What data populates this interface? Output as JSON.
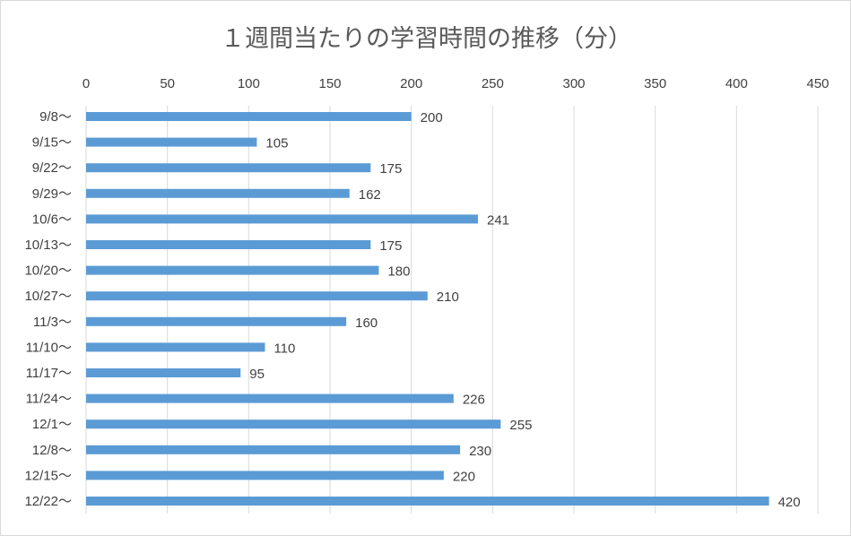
{
  "chart_data": {
    "type": "bar",
    "orientation": "horizontal",
    "title": "１週間当たりの学習時間の推移（分）",
    "categories": [
      "9/8～",
      "9/15～",
      "9/22～",
      "9/29～",
      "10/6～",
      "10/13～",
      "10/20～",
      "10/27～",
      "11/3～",
      "11/10～",
      "11/17～",
      "11/24～",
      "12/1～",
      "12/8～",
      "12/15～",
      "12/22～"
    ],
    "values": [
      200,
      105,
      175,
      162,
      241,
      175,
      180,
      210,
      160,
      110,
      95,
      226,
      255,
      230,
      220,
      420
    ],
    "xlim": [
      0,
      450
    ],
    "xticks": [
      0,
      50,
      100,
      150,
      200,
      250,
      300,
      350,
      400,
      450
    ],
    "xaxis_position": "top",
    "grid": true,
    "data_labels": true,
    "bar_color": "#5b9bd5",
    "grid_color": "#d9d9d9"
  }
}
